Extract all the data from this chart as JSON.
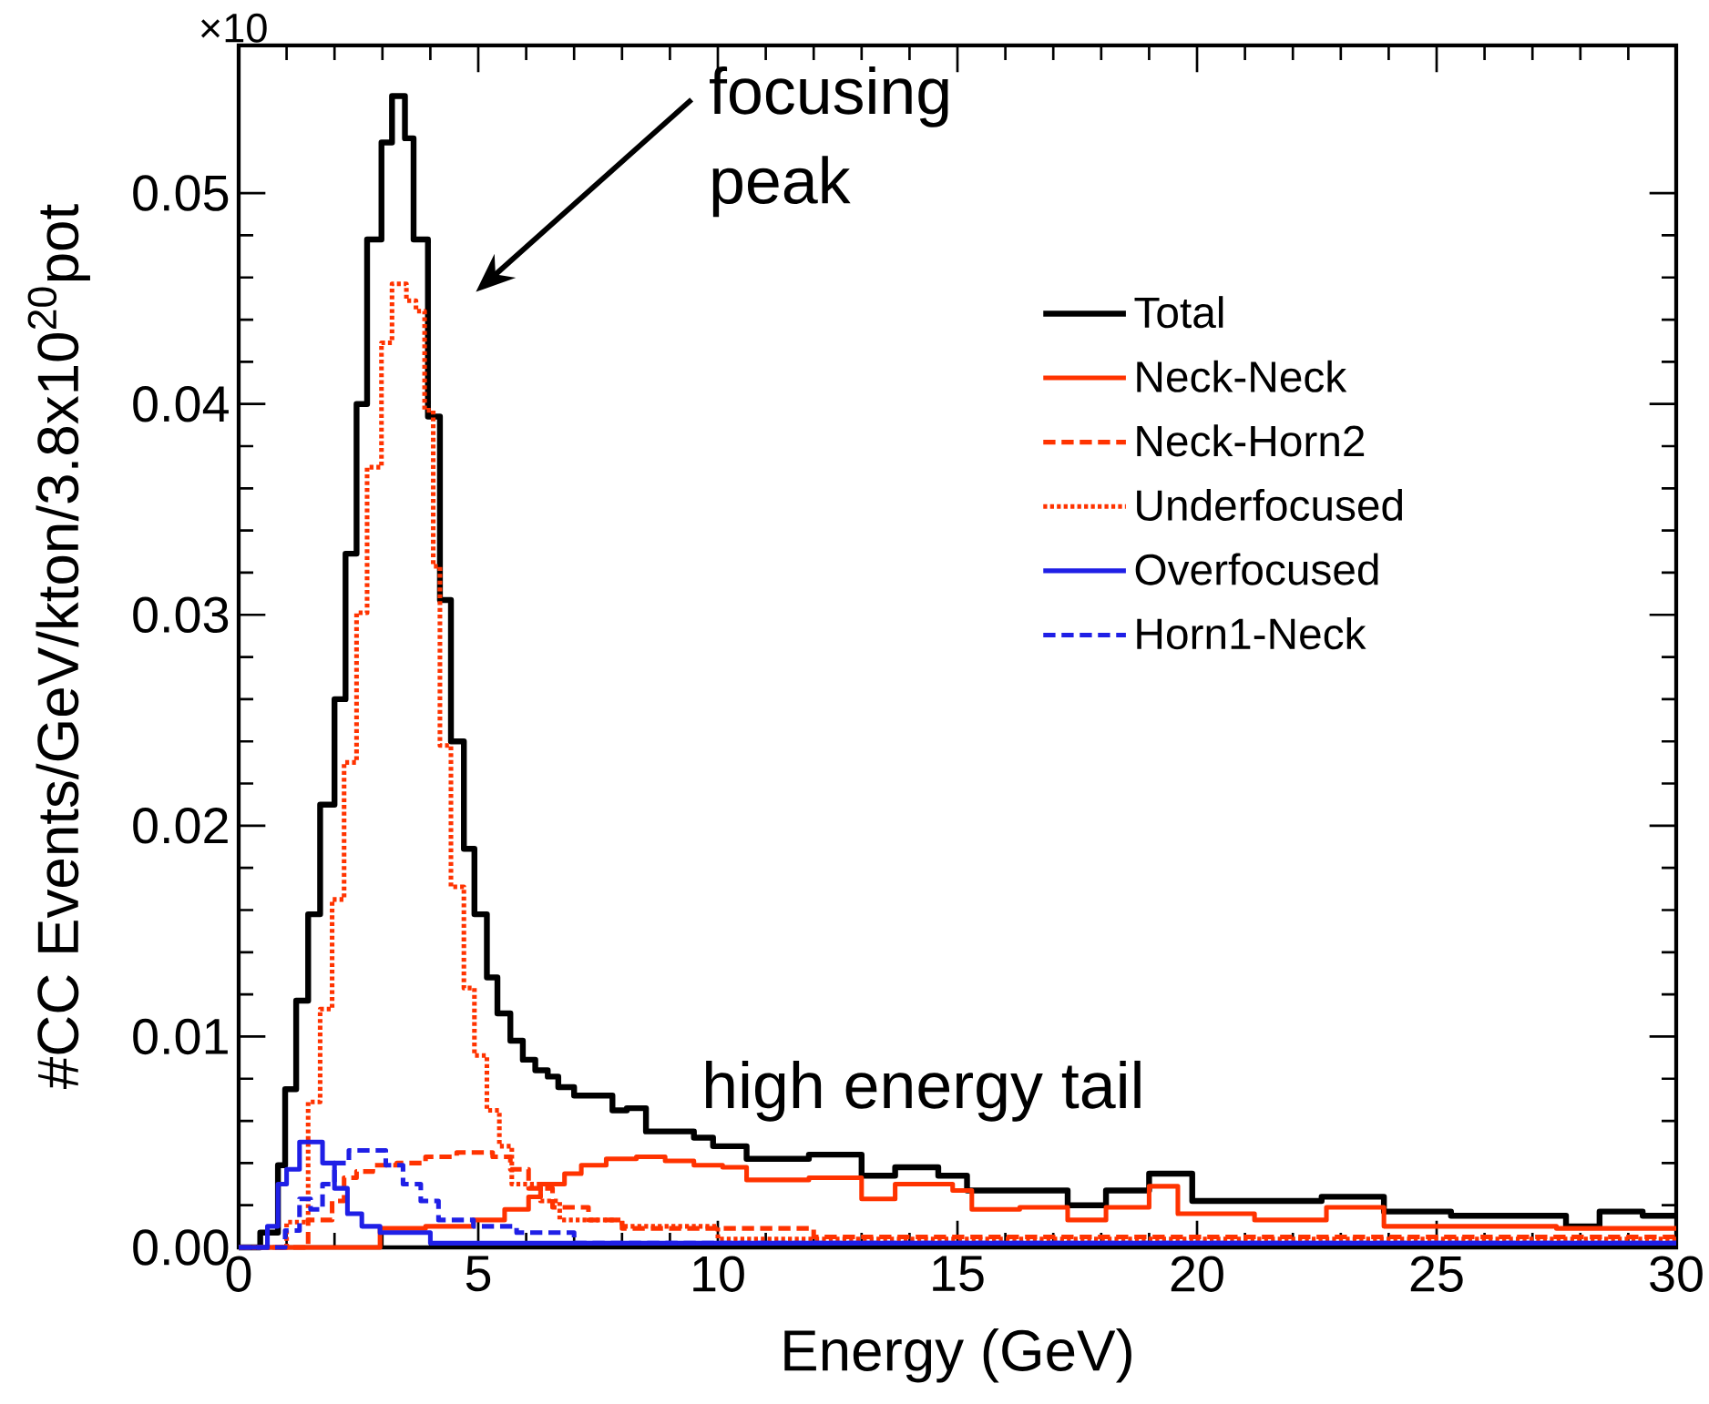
{
  "chart_data": {
    "type": "step",
    "xlabel": "Energy (GeV)",
    "ylabel": "#CC Events/GeV/kton/3.8x10$^{20}$pot",
    "xlim": [
      0,
      30
    ],
    "ylim": [
      0,
      0.057
    ],
    "xticks": [
      0,
      5,
      10,
      15,
      20,
      25,
      30
    ],
    "yticks": [
      {
        "value": 0,
        "label": "0.00"
      },
      {
        "value": 0.01,
        "label": "0.01"
      },
      {
        "value": 0.02,
        "label": "0.02"
      },
      {
        "value": 0.03,
        "label": "0.03"
      },
      {
        "value": 0.04,
        "label": "0.04"
      },
      {
        "value": 0.05,
        "label": "0.05"
      }
    ],
    "legend": "top right",
    "series": [
      {
        "name": "Total",
        "color": "#000000",
        "line_style": "solid",
        "x": [
          0,
          0.45,
          0.82,
          0.97,
          1.2,
          1.45,
          1.7,
          2.0,
          2.23,
          2.46,
          2.68,
          2.98,
          3.2,
          3.47,
          3.65,
          3.95,
          4.2,
          4.43,
          4.7,
          4.92,
          5.18,
          5.4,
          5.67,
          5.93,
          6.19,
          6.45,
          6.67,
          7.0,
          7.8,
          8.1,
          8.5,
          9.5,
          9.9,
          10.6,
          11.9,
          13.0,
          13.7,
          14.6,
          15.2,
          16.2,
          17.3,
          18.1,
          19.0,
          19.9,
          21.2,
          22.6,
          23.9,
          25.3,
          27.7,
          28.4,
          29.3,
          30
        ],
        "values": [
          0,
          0.0007,
          0.0039,
          0.0075,
          0.0117,
          0.0158,
          0.021,
          0.026,
          0.0329,
          0.04,
          0.0478,
          0.0524,
          0.0546,
          0.0526,
          0.0478,
          0.0394,
          0.0307,
          0.024,
          0.0189,
          0.0158,
          0.0128,
          0.0111,
          0.0098,
          0.0089,
          0.0084,
          0.0081,
          0.0076,
          0.0072,
          0.0065,
          0.0066,
          0.0055,
          0.0052,
          0.0048,
          0.0042,
          0.0044,
          0.0034,
          0.0038,
          0.0034,
          0.0027,
          0.0027,
          0.002,
          0.0027,
          0.0035,
          0.0022,
          0.0022,
          0.0024,
          0.0017,
          0.0015,
          0.001,
          0.0017,
          0.0015,
          0.0015
        ]
      },
      {
        "name": "Neck-Neck",
        "color": "#ff3300",
        "line_style": "solid",
        "x": [
          0,
          2.95,
          3.9,
          4.9,
          5.55,
          6.05,
          6.3,
          6.8,
          7.15,
          7.67,
          8.3,
          8.9,
          9.5,
          10.1,
          10.6,
          11.9,
          13.0,
          13.7,
          14.9,
          15.3,
          16.3,
          17.3,
          18.1,
          19.0,
          19.6,
          21.2,
          22.7,
          23.9,
          27.5,
          30
        ],
        "values": [
          0,
          0.0009,
          0.001,
          0.0013,
          0.0018,
          0.0024,
          0.003,
          0.0035,
          0.0039,
          0.0042,
          0.0043,
          0.0041,
          0.0039,
          0.0038,
          0.0032,
          0.0033,
          0.0023,
          0.003,
          0.0027,
          0.0018,
          0.0019,
          0.0013,
          0.0019,
          0.0029,
          0.0016,
          0.0013,
          0.0019,
          0.001,
          0.0009,
          0.0009
        ]
      },
      {
        "name": "Neck-Horn2",
        "color": "#ff3300",
        "line_style": "dashed",
        "x": [
          0,
          1.45,
          1.95,
          2.2,
          2.46,
          2.8,
          3.3,
          3.9,
          4.55,
          5.3,
          5.67,
          6.05,
          6.55,
          7.3,
          8.0,
          12.0,
          30
        ],
        "values": [
          0,
          0.0013,
          0.0022,
          0.0033,
          0.0036,
          0.0039,
          0.004,
          0.0043,
          0.0045,
          0.0043,
          0.0037,
          0.0028,
          0.0019,
          0.0013,
          0.0009,
          0.0005,
          0.0005
        ]
      },
      {
        "name": "Underfocused",
        "color": "#ff3300",
        "line_style": "dotted",
        "x": [
          0,
          1.0,
          1.45,
          1.7,
          1.95,
          2.2,
          2.46,
          2.68,
          2.98,
          3.2,
          3.5,
          3.7,
          3.88,
          4.06,
          4.2,
          4.43,
          4.7,
          4.92,
          5.18,
          5.44,
          5.7,
          6.3,
          6.7,
          8.0,
          10.0,
          30
        ],
        "values": [
          0,
          0.0012,
          0.0069,
          0.0113,
          0.0165,
          0.023,
          0.0301,
          0.037,
          0.0429,
          0.0457,
          0.0449,
          0.0444,
          0.0397,
          0.0323,
          0.0238,
          0.0171,
          0.0123,
          0.0091,
          0.0065,
          0.0048,
          0.003,
          0.0022,
          0.0013,
          0.001,
          0.0004,
          0.0004
        ]
      },
      {
        "name": "Overfocused",
        "color": "#1f1fe6",
        "line_style": "solid",
        "x": [
          0,
          0.6,
          0.82,
          1.0,
          1.27,
          1.75,
          2.0,
          2.27,
          2.57,
          2.95,
          4.0,
          30
        ],
        "values": [
          0,
          0.001,
          0.003,
          0.0037,
          0.005,
          0.004,
          0.0028,
          0.0016,
          0.001,
          0.0007,
          0.0002,
          0.0002
        ]
      },
      {
        "name": "Horn1-Neck",
        "color": "#1f1fe6",
        "line_style": "dashed",
        "x": [
          0,
          0.97,
          1.27,
          1.5,
          1.75,
          2.0,
          2.3,
          2.8,
          3.07,
          3.43,
          3.8,
          4.17,
          4.9,
          5.8,
          7.0,
          30
        ],
        "values": [
          0,
          0.0008,
          0.0023,
          0.0018,
          0.003,
          0.004,
          0.0046,
          0.0046,
          0.0039,
          0.003,
          0.0022,
          0.0013,
          0.001,
          0.0007,
          0.0002,
          0.0002
        ]
      }
    ],
    "annotations": [
      "focusing peak",
      "high energy tail",
      "×10"
    ]
  }
}
